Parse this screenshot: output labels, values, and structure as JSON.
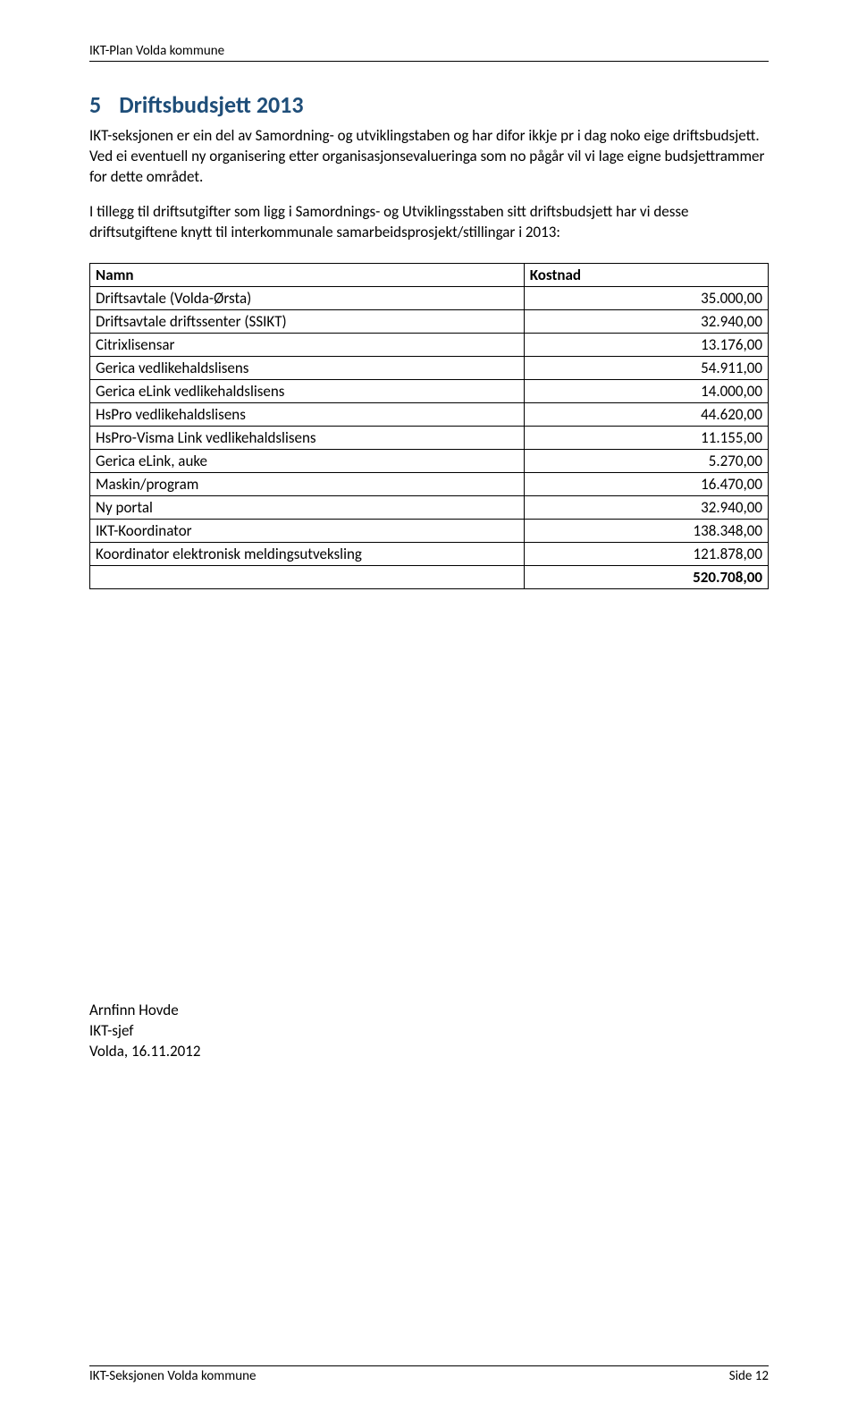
{
  "header": {
    "text": "IKT-Plan Volda kommune"
  },
  "section": {
    "number": "5",
    "title": "Driftsbudsjett 2013",
    "paragraphs": [
      "IKT-seksjonen er ein del av Samordning- og utviklingstaben og har difor ikkje pr i dag noko eige driftsbudsjett. Ved ei eventuell ny organisering etter organisasjonsevalueringa som no pågår vil vi lage eigne budsjettrammer for dette området.",
      "I tillegg til driftsutgifter som ligg i Samordnings- og Utviklingsstaben sitt driftsbudsjett har vi desse driftsutgiftene knytt til interkommunale samarbeidsprosjekt/stillingar i 2013:"
    ]
  },
  "table": {
    "columns": [
      "Namn",
      "Kostnad"
    ],
    "rows": [
      [
        "Driftsavtale (Volda-Ørsta)",
        "35.000,00"
      ],
      [
        "Driftsavtale driftssenter (SSIKT)",
        "32.940,00"
      ],
      [
        "Citrixlisensar",
        "13.176,00"
      ],
      [
        "Gerica vedlikehaldslisens",
        "54.911,00"
      ],
      [
        "Gerica eLink vedlikehaldslisens",
        "14.000,00"
      ],
      [
        "HsPro vedlikehaldslisens",
        "44.620,00"
      ],
      [
        "HsPro-Visma Link vedlikehaldslisens",
        "11.155,00"
      ],
      [
        "Gerica eLink, auke",
        "5.270,00"
      ],
      [
        "Maskin/program",
        "16.470,00"
      ],
      [
        "Ny portal",
        "32.940,00"
      ],
      [
        "IKT-Koordinator",
        "138.348,00"
      ],
      [
        "Koordinator elektronisk meldingsutveksling",
        "121.878,00"
      ],
      [
        "",
        "520.708,00"
      ]
    ]
  },
  "signature": {
    "name": "Arnfinn Hovde",
    "title": "IKT-sjef",
    "place_date": "Volda, 16.11.2012"
  },
  "footer": {
    "left": "IKT-Seksjonen Volda kommune",
    "right": "Side 12"
  },
  "colors": {
    "heading": "#1f4e79",
    "text": "#000000",
    "border": "#000000",
    "background": "#ffffff"
  }
}
